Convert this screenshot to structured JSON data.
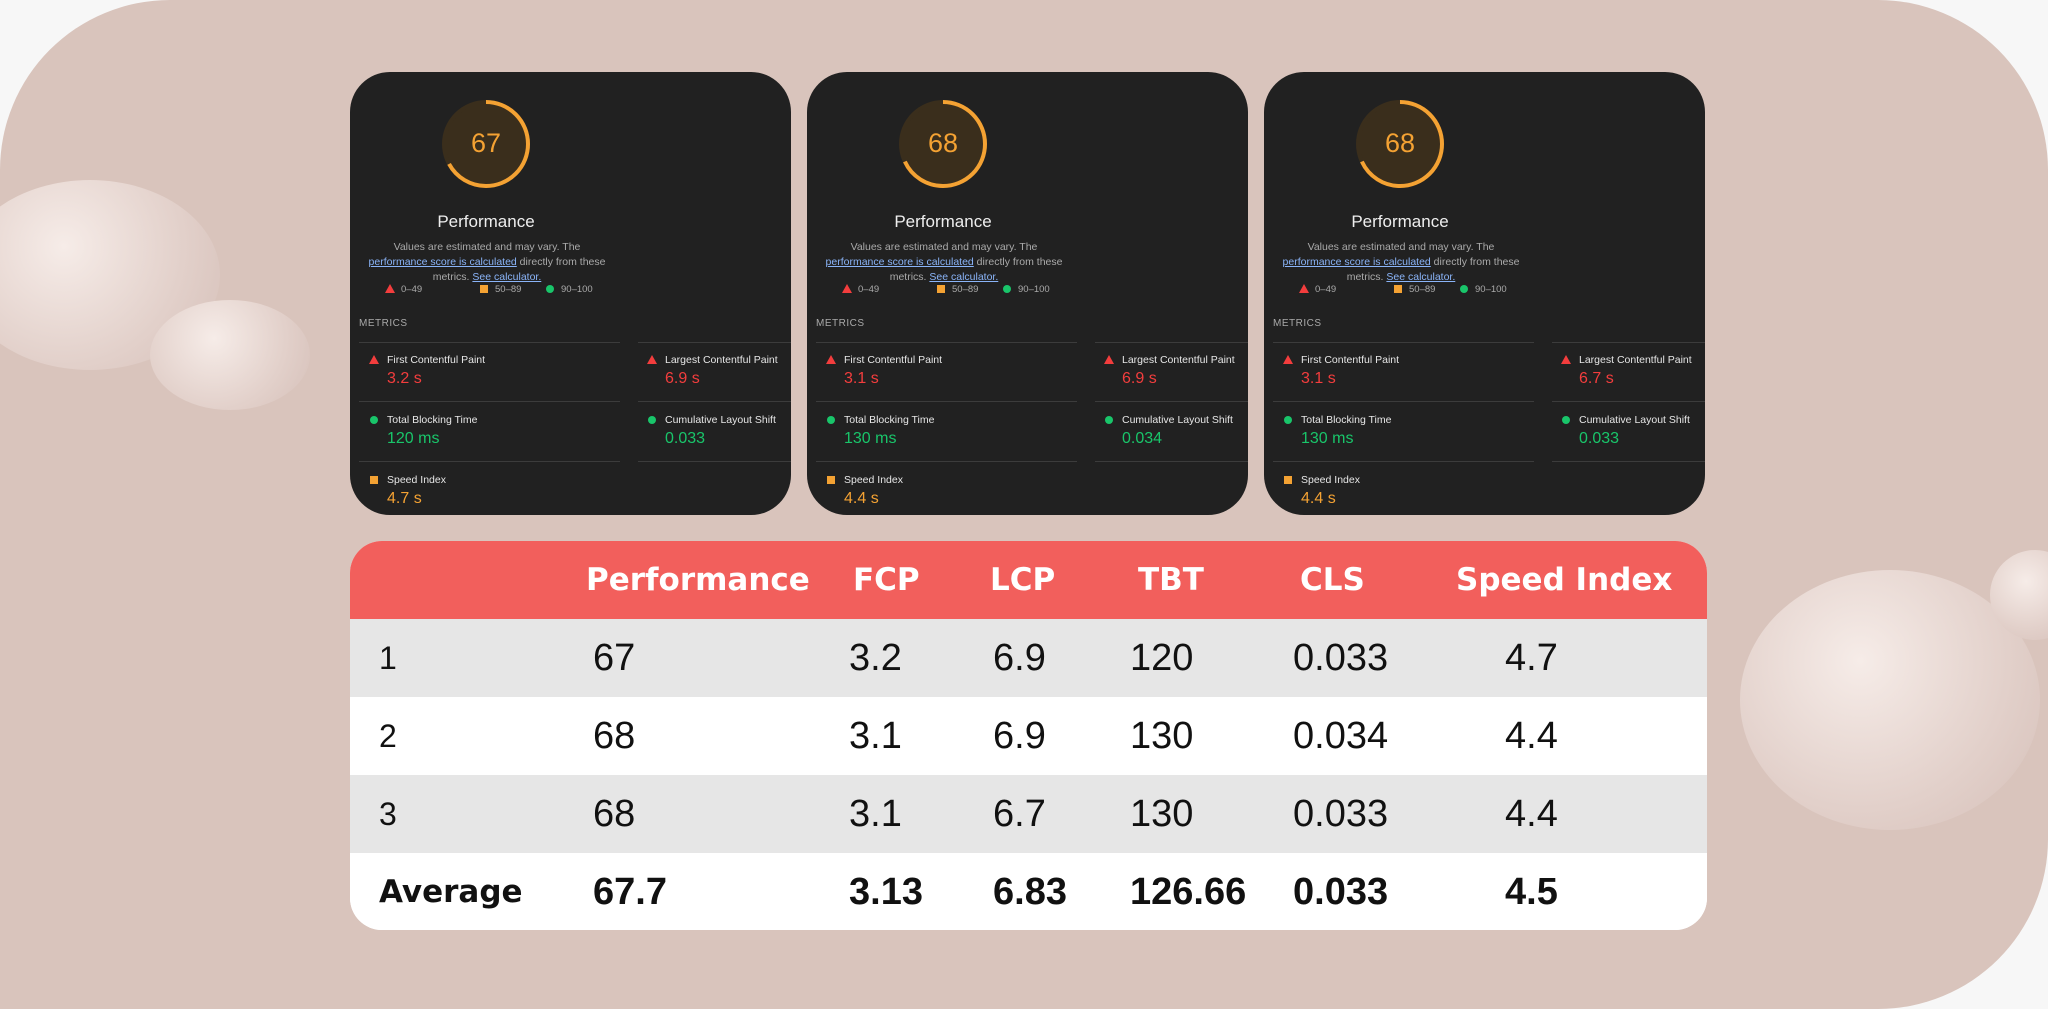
{
  "cards": [
    {
      "score": 67,
      "title": "Performance",
      "desc_prefix": "Values are estimated and may vary. The ",
      "link1": "performance score is calculated",
      "desc_middle": " directly from these metrics. ",
      "link2": "See calculator.",
      "legend": [
        {
          "label": "0–49",
          "color": "#f33d3d",
          "shape": "triangle"
        },
        {
          "label": "50–89",
          "color": "#f4a233",
          "shape": "square"
        },
        {
          "label": "90–100",
          "color": "#19c56a",
          "shape": "circle"
        }
      ],
      "metrics_title": "METRICS",
      "metrics": [
        {
          "label": "First Contentful Paint",
          "value": "3.2 s",
          "color": "#f33d3d"
        },
        {
          "label": "Largest Contentful Paint",
          "value": "6.9 s",
          "color": "#f33d3d"
        },
        {
          "label": "Total Blocking Time",
          "value": "120 ms",
          "color": "#19c56a"
        },
        {
          "label": "Cumulative Layout Shift",
          "value": "0.033",
          "color": "#19c56a"
        },
        {
          "label": "Speed Index",
          "value": "4.7 s",
          "color": "#f4a233"
        }
      ]
    },
    {
      "score": 68,
      "title": "Performance",
      "desc_prefix": "Values are estimated and may vary. The ",
      "link1": "performance score is calculated",
      "desc_middle": " directly from these metrics. ",
      "link2": "See calculator.",
      "legend": [
        {
          "label": "0–49",
          "color": "#f33d3d",
          "shape": "triangle"
        },
        {
          "label": "50–89",
          "color": "#f4a233",
          "shape": "square"
        },
        {
          "label": "90–100",
          "color": "#19c56a",
          "shape": "circle"
        }
      ],
      "metrics_title": "METRICS",
      "metrics": [
        {
          "label": "First Contentful Paint",
          "value": "3.1 s",
          "color": "#f33d3d"
        },
        {
          "label": "Largest Contentful Paint",
          "value": "6.9 s",
          "color": "#f33d3d"
        },
        {
          "label": "Total Blocking Time",
          "value": "130 ms",
          "color": "#19c56a"
        },
        {
          "label": "Cumulative Layout Shift",
          "value": "0.034",
          "color": "#19c56a"
        },
        {
          "label": "Speed Index",
          "value": "4.4 s",
          "color": "#f4a233"
        }
      ]
    },
    {
      "score": 68,
      "title": "Performance",
      "desc_prefix": "Values are estimated and may vary. The ",
      "link1": "performance score is calculated",
      "desc_middle": " directly from these metrics. ",
      "link2": "See calculator.",
      "legend": [
        {
          "label": "0–49",
          "color": "#f33d3d",
          "shape": "triangle"
        },
        {
          "label": "50–89",
          "color": "#f4a233",
          "shape": "square"
        },
        {
          "label": "90–100",
          "color": "#19c56a",
          "shape": "circle"
        }
      ],
      "metrics_title": "METRICS",
      "metrics": [
        {
          "label": "First Contentful Paint",
          "value": "3.1 s",
          "color": "#f33d3d"
        },
        {
          "label": "Largest Contentful Paint",
          "value": "6.7 s",
          "color": "#f33d3d"
        },
        {
          "label": "Total Blocking Time",
          "value": "130 ms",
          "color": "#19c56a"
        },
        {
          "label": "Cumulative Layout Shift",
          "value": "0.033",
          "color": "#19c56a"
        },
        {
          "label": "Speed Index",
          "value": "4.4 s",
          "color": "#f4a233"
        }
      ]
    }
  ],
  "table": {
    "columns": [
      "Performance",
      "FCP",
      "LCP",
      "TBT",
      "CLS",
      "Speed Index"
    ],
    "rows": [
      {
        "label": "1",
        "cells": [
          67,
          3.2,
          6.9,
          120,
          0.033,
          4.7
        ]
      },
      {
        "label": "2",
        "cells": [
          68,
          3.1,
          6.9,
          130,
          0.034,
          4.4
        ]
      },
      {
        "label": "3",
        "cells": [
          68,
          3.1,
          6.7,
          130,
          0.033,
          4.4
        ]
      },
      {
        "label": "Average",
        "cells": [
          67.7,
          3.13,
          6.83,
          126.66,
          0.033,
          4.5
        ]
      }
    ]
  }
}
